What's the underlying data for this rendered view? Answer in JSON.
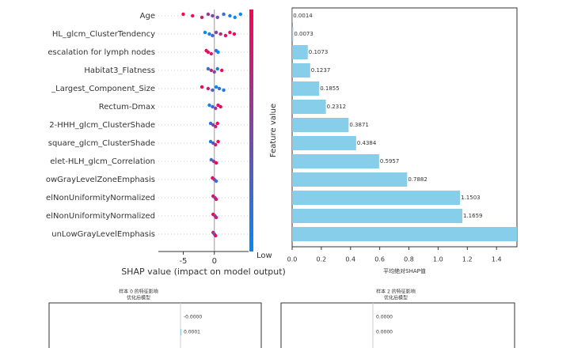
{
  "chart_data": [
    {
      "type": "beeswarm",
      "categories": [
        "Age",
        "HL_glcm_ClusterTendency",
        "escalation for lymph nodes",
        "Habitat3_Flatness",
        "_Largest_Component_Size",
        "Rectum-Dmax",
        "2-HHH_glcm_ClusterShade",
        "square_glcm_ClusterShade",
        "elet-HLH_glcm_Correlation",
        "owGrayLevelZoneEmphasis",
        "elNonUniformityNormalized",
        "elNonUniformityNormalized",
        "unLowGrayLevelEmphasis"
      ],
      "shap_values": [
        [
          -5,
          -3.5,
          -2,
          -1,
          -0.3,
          0.5,
          1.5,
          2.5,
          3.3,
          4.2
        ],
        [
          -1.5,
          -0.8,
          -0.3,
          0.3,
          1,
          1.8,
          2.5,
          3.2
        ],
        [
          -1.3,
          -1,
          -0.5,
          0.3,
          0.6
        ],
        [
          -1,
          -0.5,
          0,
          0.5,
          1.2
        ],
        [
          -2,
          -1,
          -0.3,
          0.3,
          0.8,
          1.5
        ],
        [
          -0.8,
          -0.3,
          0.2,
          0.6,
          1
        ],
        [
          -0.6,
          -0.2,
          0.2,
          0.5
        ],
        [
          -0.6,
          -0.2,
          0.2,
          0.6
        ],
        [
          -0.5,
          -0.1,
          0.3
        ],
        [
          -0.3,
          0,
          0.3
        ],
        [
          -0.2,
          0.1,
          0.3
        ],
        [
          -0.2,
          0.1,
          0.3
        ],
        [
          -0.2,
          0,
          0.2
        ]
      ],
      "feature_values": [
        [
          1,
          0.9,
          0.8,
          0.6,
          0.5,
          0.4,
          0.2,
          0.1,
          0,
          0
        ],
        [
          0,
          0.1,
          0.3,
          0.5,
          0.7,
          0.9,
          1,
          1
        ],
        [
          1,
          0.9,
          0.8,
          0.2,
          0
        ],
        [
          0.2,
          0.8,
          0.5,
          0.1,
          1
        ],
        [
          1,
          0.8,
          0.3,
          0,
          0.2,
          0.1
        ],
        [
          0.1,
          0.2,
          0.6,
          0.9,
          1
        ],
        [
          0.2,
          0.5,
          0.8,
          1
        ],
        [
          0.1,
          0.4,
          0.8,
          1
        ],
        [
          0.2,
          0.6,
          1
        ],
        [
          1,
          0.5,
          0.2
        ],
        [
          0.9,
          0.5,
          0.8
        ],
        [
          1,
          0.5,
          0.8
        ],
        [
          0.8,
          0.3,
          1
        ]
      ],
      "colors": [
        "#008afb",
        "#ff0052"
      ],
      "xlabel": "SHAP value (impact on model output)",
      "xlim": [
        -9,
        5.5
      ],
      "xticks": [
        -5,
        0
      ],
      "colorbar_low": "Low",
      "colorbar_label": "Feature value"
    },
    {
      "type": "barh",
      "values": [
        0.0014,
        0.0073,
        0.1073,
        0.1237,
        0.1855,
        0.2312,
        0.3871,
        0.4384,
        0.5957,
        0.7882,
        1.1503,
        1.1659,
        1.54
      ],
      "value_labels": [
        "0.0014",
        "0.0073",
        "0.1073",
        "0.1237",
        "0.1855",
        "0.2312",
        "0.3871",
        "0.4384",
        "0.5957",
        "0.7882",
        "1.1503",
        "1.1659",
        null
      ],
      "color": "#87ceeb",
      "xlabel": "平均绝对SHAP值",
      "xlim": [
        0,
        1.54
      ],
      "xticks": [
        {
          "value": 0,
          "label": "0.0"
        },
        0.2,
        0.4,
        0.6,
        0.8,
        {
          "value": 1,
          "label": "1.0"
        },
        1.2,
        1.4
      ]
    },
    {
      "type": "sample",
      "title": "样本 0 的特征影响",
      "subtitle": "优化后模型",
      "values": [
        0,
        0.0001
      ],
      "value_labels": [
        "-0.0000",
        "0.0001"
      ]
    },
    {
      "type": "sample",
      "title": "样本 2 的特征影响",
      "subtitle": "优化后模型",
      "values": [
        0,
        0
      ],
      "value_labels": [
        "0.0000",
        "0.0000"
      ]
    }
  ]
}
